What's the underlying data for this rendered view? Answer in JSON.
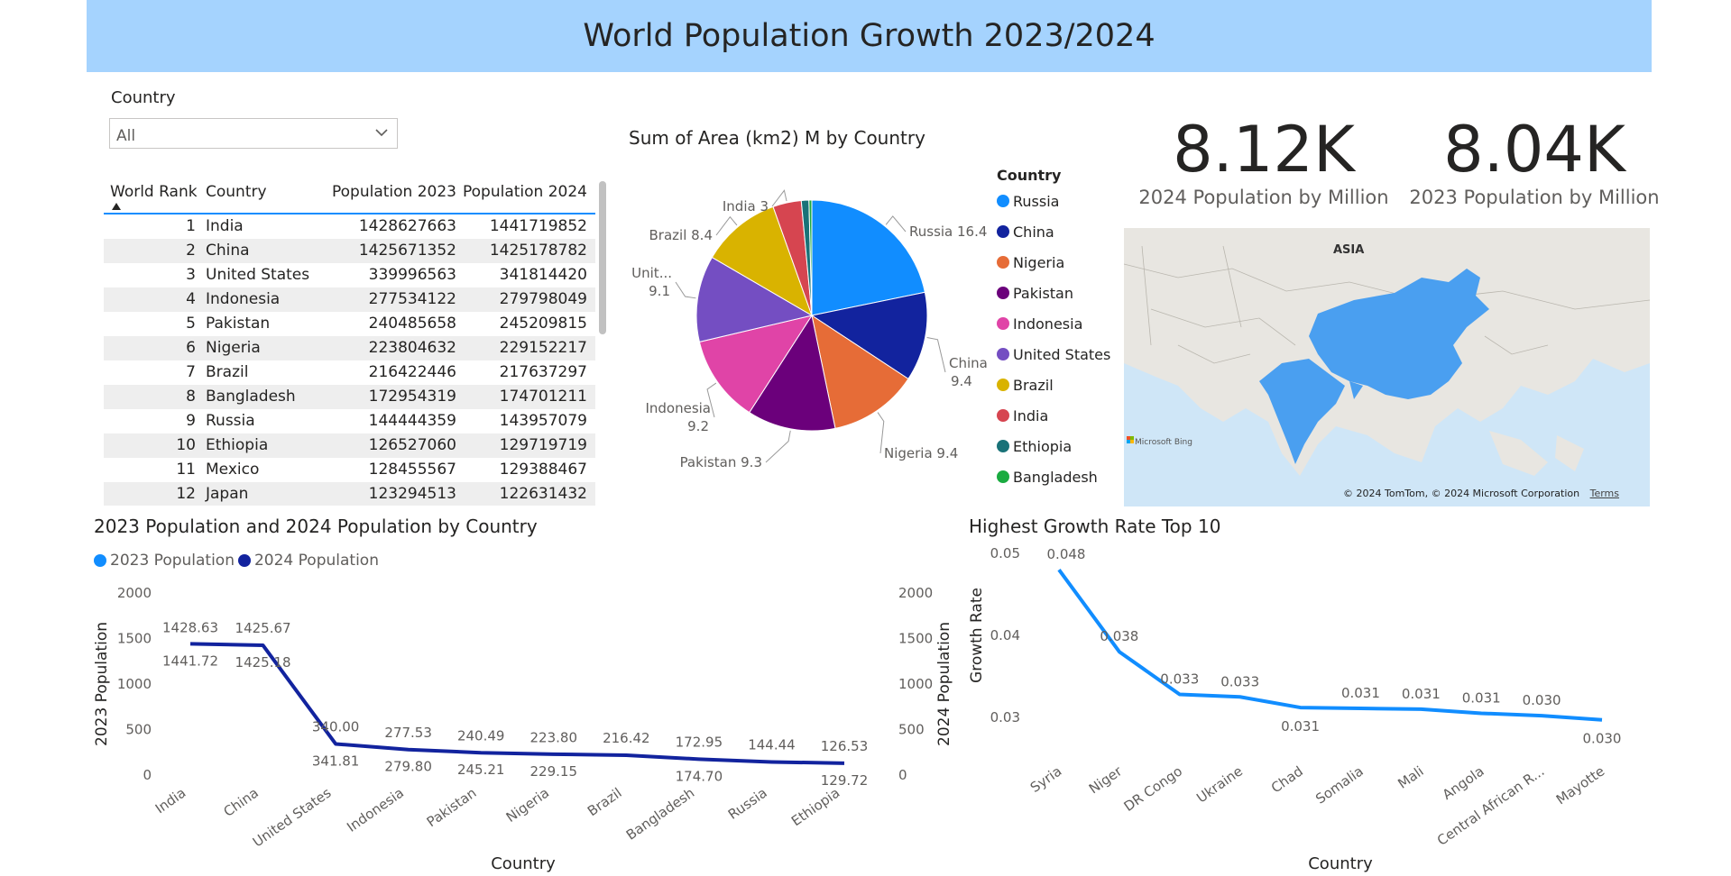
{
  "header": {
    "title": "World Population Growth 2023/2024"
  },
  "slicer": {
    "label": "Country",
    "value": "All"
  },
  "table": {
    "columns": [
      "World Rank",
      "Country",
      "Population 2023",
      "Population 2024"
    ],
    "rows": [
      {
        "rank": "1",
        "country": "India",
        "p2023": "1428627663",
        "p2024": "1441719852"
      },
      {
        "rank": "2",
        "country": "China",
        "p2023": "1425671352",
        "p2024": "1425178782"
      },
      {
        "rank": "3",
        "country": "United States",
        "p2023": "339996563",
        "p2024": "341814420"
      },
      {
        "rank": "4",
        "country": "Indonesia",
        "p2023": "277534122",
        "p2024": "279798049"
      },
      {
        "rank": "5",
        "country": "Pakistan",
        "p2023": "240485658",
        "p2024": "245209815"
      },
      {
        "rank": "6",
        "country": "Nigeria",
        "p2023": "223804632",
        "p2024": "229152217"
      },
      {
        "rank": "7",
        "country": "Brazil",
        "p2023": "216422446",
        "p2024": "217637297"
      },
      {
        "rank": "8",
        "country": "Bangladesh",
        "p2023": "172954319",
        "p2024": "174701211"
      },
      {
        "rank": "9",
        "country": "Russia",
        "p2023": "144444359",
        "p2024": "143957079"
      },
      {
        "rank": "10",
        "country": "Ethiopia",
        "p2023": "126527060",
        "p2024": "129719719"
      },
      {
        "rank": "11",
        "country": "Mexico",
        "p2023": "128455567",
        "p2024": "129388467"
      },
      {
        "rank": "12",
        "country": "Japan",
        "p2023": "123294513",
        "p2024": "122631432"
      }
    ]
  },
  "kpis": [
    {
      "value": "8.12K",
      "label": "2024 Population by Million"
    },
    {
      "value": "8.04K",
      "label": "2023 Population by Million"
    }
  ],
  "map": {
    "region_label": "ASIA",
    "attribution": "© 2024 TomTom, © 2024 Microsoft Corporation",
    "terms": "Terms",
    "provider": "Microsoft Bing",
    "land_color": "#e8e6e1",
    "highlight_color": "#4a9ff0",
    "water_color": "#cfe6f7"
  },
  "chart_data": [
    {
      "type": "pie",
      "title": "Sum of Area (km2) M by Country",
      "legend_title": "Country",
      "legend_position": "right",
      "slices": [
        {
          "label": "Russia",
          "value": 16.4,
          "color": "#118dff",
          "display": "Russia 16.4"
        },
        {
          "label": "China",
          "value": 9.4,
          "color": "#12239e",
          "display": "China 9.4"
        },
        {
          "label": "Nigeria",
          "value": 9.4,
          "color": "#e66c37",
          "display": "Nigeria 9.4"
        },
        {
          "label": "Pakistan",
          "value": 9.3,
          "color": "#6b007b",
          "display": "Pakistan 9.3"
        },
        {
          "label": "Indonesia",
          "value": 9.2,
          "color": "#e044a7",
          "display": "Indonesia 9.2"
        },
        {
          "label": "United States",
          "value": 9.1,
          "color": "#744ec2",
          "display": "Unit... 9.1"
        },
        {
          "label": "Brazil",
          "value": 8.4,
          "color": "#d9b300",
          "display": "Brazil 8.4"
        },
        {
          "label": "India",
          "value": 3,
          "color": "#d64550",
          "display": "India 3"
        },
        {
          "label": "Ethiopia",
          "value": 0.8,
          "color": "#197278",
          "display": ""
        },
        {
          "label": "Bangladesh",
          "value": 0.3,
          "color": "#1aab40",
          "display": ""
        }
      ]
    },
    {
      "type": "line",
      "title": "2023 Population and 2024 Population by Country",
      "legend_position": "top-left",
      "categories": [
        "India",
        "China",
        "United States",
        "Indonesia",
        "Pakistan",
        "Nigeria",
        "Brazil",
        "Bangladesh",
        "Russia",
        "Ethiopia"
      ],
      "series": [
        {
          "name": "2023 Population",
          "color": "#118dff",
          "values": [
            1428.63,
            1425.67,
            340.0,
            277.53,
            240.49,
            223.8,
            216.42,
            172.95,
            144.44,
            126.53
          ],
          "labels": [
            "1428.63",
            "1425.67",
            "340.00",
            "277.53",
            "240.49",
            "223.80",
            "216.42",
            "172.95",
            "144.44",
            "126.53"
          ]
        },
        {
          "name": "2024 Population",
          "color": "#12239e",
          "values": [
            1441.72,
            1425.18,
            341.81,
            279.8,
            245.21,
            229.15,
            217.64,
            174.7,
            143.96,
            129.72
          ],
          "labels": [
            "1441.72",
            "1425.18",
            "341.81",
            "279.80",
            "245.21",
            "229.15",
            "",
            "174.70",
            "",
            "129.72"
          ]
        }
      ],
      "xlabel": "Country",
      "ylabel": "2023 Population",
      "y2label": "2024 Population",
      "ylim": [
        0,
        2000
      ],
      "yticks": [
        "0",
        "500",
        "1000",
        "1500",
        "2000"
      ]
    },
    {
      "type": "line",
      "title": "Highest Growth Rate Top 10",
      "categories": [
        "Syria",
        "Niger",
        "DR Congo",
        "Ukraine",
        "Chad",
        "Somalia",
        "Mali",
        "Angola",
        "Central African R...",
        "Mayotte"
      ],
      "series": [
        {
          "name": "Growth Rate",
          "color": "#118dff",
          "values": [
            0.048,
            0.038,
            0.0328,
            0.0325,
            0.0312,
            0.0311,
            0.031,
            0.0305,
            0.0302,
            0.0297
          ],
          "labels": [
            "0.048",
            "0.038",
            "0.033",
            "0.033",
            "0.031",
            "0.031",
            "0.031",
            "0.031",
            "0.030",
            "0.030"
          ]
        }
      ],
      "xlabel": "Country",
      "ylabel": "Growth Rate",
      "ylim": [
        0.03,
        0.05
      ],
      "yticks": [
        "0.03",
        "0.04",
        "0.05"
      ]
    }
  ]
}
